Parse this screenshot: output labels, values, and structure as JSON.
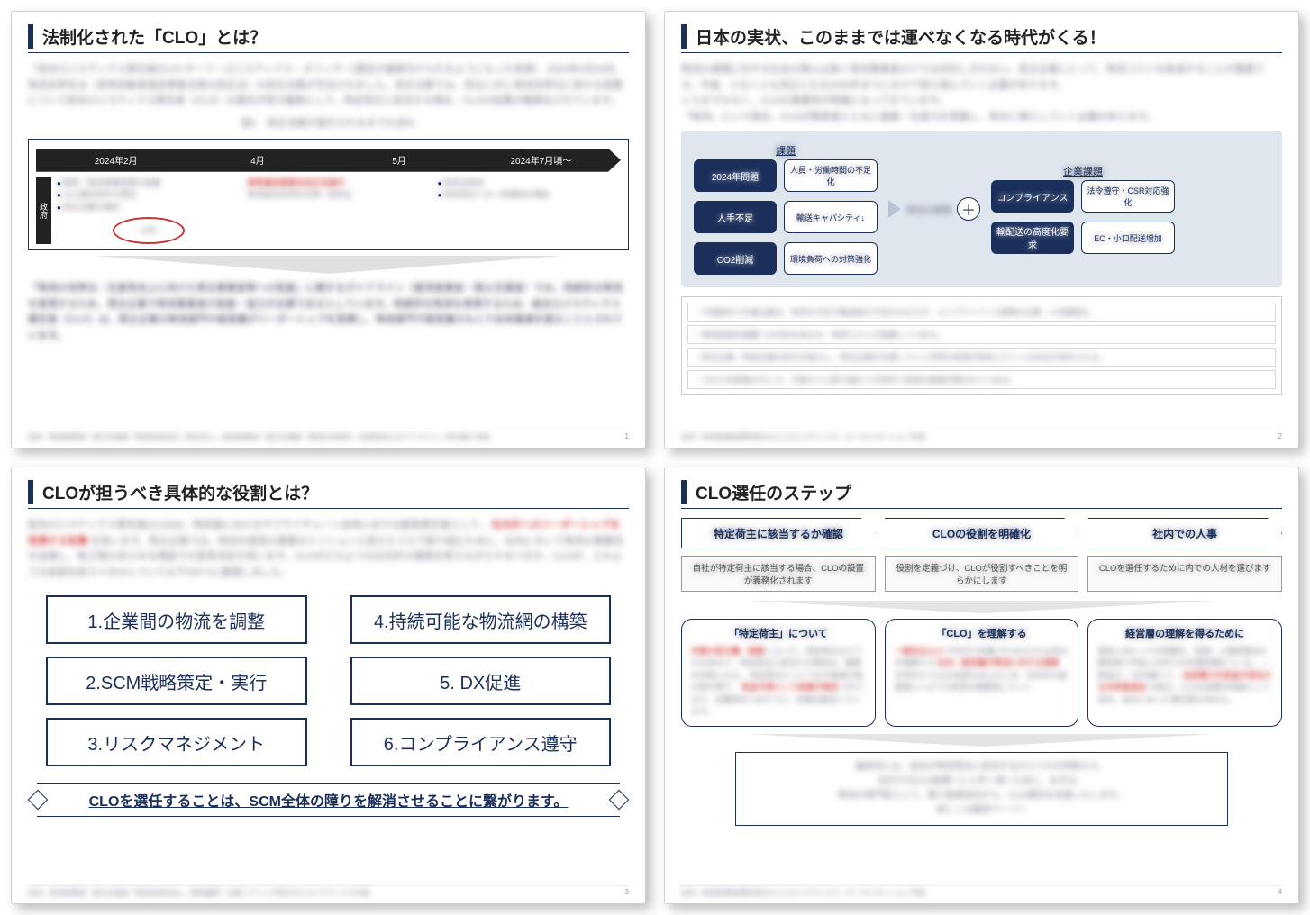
{
  "colors": {
    "navy": "#1a2f5a",
    "accent_red": "#cc2222",
    "bg_blue": "#dfe6ee",
    "shadow": "rgba(0,0,0,0.25)",
    "grey": "#e0e0e0"
  },
  "slide1": {
    "title": "法制化された「CLO」とは？",
    "intro": "「総合ロジスティクス責任者(CLO=チーフ・ロジスティクス・オフィサー)選定が義務付けられるようになった背景〕 2024年4月26日、物流効率化法（貨物自動車運送事業法等の改正法）の改正法案が可決されました。改正法案では、荷主に対し物流効率化に資する措置について総合ロジスティクス責任者（CLO）の選任が努力義務として、特定荷主に該当する場合、CLOの設置が義務化されています。",
    "caption": "図1　改正法案が施行されるまでの流れ",
    "timeline": {
      "labels": [
        "2024年2月",
        "4月",
        "5月",
        "2024年7月頃〜"
      ],
      "side": "政府",
      "col1": [
        "関係・物流事業者等の協議",
        "CLO選任条件の規定",
        "改正法案の検討"
      ],
      "col2_red": "貨物運送事業法改正法施行",
      "col2_sub": "物流総合効率化法等一部改正",
      "col3": [
        "物流法制定",
        "特定荷主への一斉通知を開始"
      ],
      "oval": "公布"
    },
    "guideline": "「物流の効率化・生産性向上に向けた荷主事業者等への取組」に関するガイドライン（経済産業省・国土交通省）では、持続的な物流を実現するため、荷主企業で物流事業者の取組・協力が必要であるとしています。持続的な物流を実現するため、総合ロジスティクス責任者（CLO）は、荷主企業の物流部門や経営層がリーダーシップを発揮し、物流部門や経営層のもとで全体最適を図ることとされています。",
    "footnote": "出所：経済産業省・国土交通省「物流効率化法（改正法）」、経済産業省・国土交通省「物流の効率化・生産性向上ガイドライン」等を基に作成",
    "page": "1"
  },
  "slide2": {
    "title": "日本の実状、このままでは運べなくなる時代がくる！",
    "intro": "物流の課題に対する社会の関心は高く物流事業者だけでは対応しきれない。荷主企業にとって、物流コストを削減することが重要です。今後、少なくとも改正となる2030年までにかけて取り組んでいく必要があります。\nいうまでもなく、CLOの重要性が明確になってきています。\n「物流」という視点、CLOが関係者とともに価値・生産力を把握し、荷主に果たしていく必要があります。",
    "left_head": "課題",
    "right_head": "企業課題",
    "left": [
      {
        "dark": "2024年問題",
        "light": "人員・労働時間の不足化"
      },
      {
        "dark": "人手不足",
        "light": "輸送キャパシティ↓"
      },
      {
        "dark": "CO2削減",
        "light": "環境負荷への対策強化"
      }
    ],
    "mid_label": "物流の課題",
    "right": [
      {
        "dark": "コンプライアンス",
        "light": "法令遵守・CSR対応強化"
      },
      {
        "dark": "輸配送の高度化要求",
        "light": "EC・小口配送増加"
      }
    ],
    "notes": [
      "・今後数年で先進企業は、物流の不足や輸送能力不足のみならず、コンプライアンス面等の企業・人材確保も、",
      "・物流高度化需要への対応を迫られ、物流コストが急騰しつつある。",
      "・荷主企業・物流企業の双方が協力し、荷主企業が主導していく世界の実現が物流コストへの対応が求められる。",
      "・コロナ収束後の今こそ、今後すぐに取り組むべき時代へ物流の価値が問われつつある。"
    ],
    "footnote": "出所：経済産業省資料等をもとにロジスティクス・オーガニゼーション作成",
    "page": "2"
  },
  "slide3": {
    "title": "CLOが担うべき具体的な役割とは？",
    "intro_black": "総合ロジスティクス責任者(CLO)は、物流面におけるサプライチェーン全体における最高責任者として、",
    "intro_red": "社内外へのリーダーシップを発揮する役職",
    "intro_black2": "を担います。荷主企業では、物流を経営の重要なミッションと捉えたうえで取り組むために、社内において物流の重要性を認識し、新工程のあらゆる場面での意思決定を担います。CLOがどのような社内外の連携を取りながらやるべきか、CLOが、どのような役割を担うべきかについて以下の6つに整理しました。",
    "roles": [
      "1.企業間の物流を調整",
      "4.持続可能な物流網の構築",
      "2.SCM戦略策定・実行",
      "5. DX促進",
      "3.リスクマネジメント",
      "6.コンプライアンス遵守"
    ],
    "bottom": "CLOを選任することは、SCM全体の障りを解消させることに繋がります。",
    "footnote": "出所：経済産業省・国土交通省「物流効率化法」、国政機関・企業ヒアリング等を元にロジスティクス作成",
    "page": "3"
  },
  "slide4": {
    "title": "CLO選任のステップ",
    "steps": [
      "特定荷主に該当するか確認",
      "CLOの役割を明確化",
      "社内での人事"
    ],
    "subs": [
      "自社が特定荷主に該当する場合、CLOの設置が義務化されます",
      "役割を定義づけ、CLOが役割すべきことを明らかにします",
      "CLOを選任するために内での人材を選びます"
    ],
    "details": [
      {
        "title": "「特定荷主」について",
        "body_red": "年間の取引量・規模",
        "body": "によって、特定荷主かどうかが決まり、特定荷主に該当する場合は、義務化対象となる。\n\n特定荷主については今後施行後の政令等で、",
        "body_red2": "政省令等として詳細が規定",
        "body_tail": "されており、記載時点ではすでに、詳細は確定しています。"
      },
      {
        "title": "「CLO」を理解する",
        "body_red": "一般的なCLO",
        "body": "や社内で定義づけるCLOとは何かを理解する\n\n",
        "body_red2": "社内・経営層が物流に対する理解",
        "body_tail": "を深める\n\nCLOの役割をあらかじめ、社内外の監督者にいよりも物流を重要視していく"
      },
      {
        "title": "経営層の理解を得るために",
        "body": "選任にあたっての情報を、役員・上層部等含む関係者で共有し社内での共通認識をつくる。\n—経営⇄—\n社内案にて、",
        "body_red": "各部署の代表者が参加する共同委員会",
        "body_tail": "の設立。CLOの設置を制度として定め、自社にあった選任者を決める。"
      }
    ],
    "final": "最終的には、自社が特定荷主に該当するかどうかの判断から、\n社内でのCLO設置へと上手く導くために、まずは、\n物流の専門家として、第三者様会社から、CLO選任を支援いたします。\n詳しくは最終ページへ",
    "footnote": "出所：経済産業省資料等をもとにロジスティクス・オーガニゼーション作成",
    "page": "4"
  }
}
